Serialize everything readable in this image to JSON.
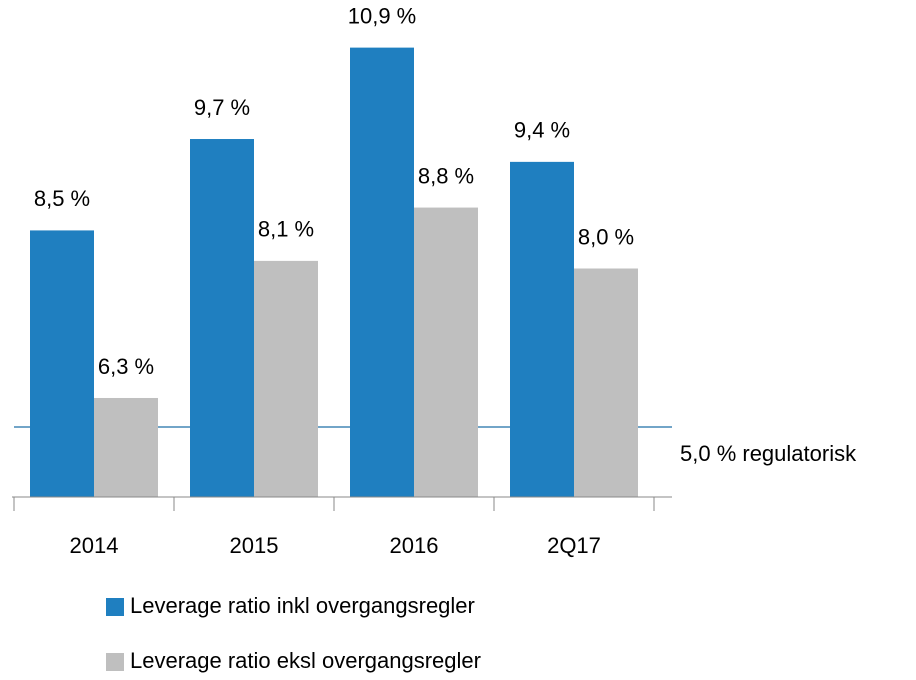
{
  "chart_data": {
    "type": "bar",
    "categories": [
      "2014",
      "2015",
      "2016",
      "2Q17"
    ],
    "series": [
      {
        "name": "Leverage ratio inkl overgangsregler",
        "color": "#1f7fc0",
        "values": [
          8.5,
          9.7,
          10.9,
          9.4
        ],
        "value_labels": [
          "8,5 %",
          "9,7 %",
          "10,9 %",
          "9,4 %"
        ]
      },
      {
        "name": "Leverage ratio eksl overgangsregler",
        "color": "#bfbfbf",
        "values": [
          6.3,
          8.1,
          8.8,
          8.0
        ],
        "value_labels": [
          "6,3 %",
          "8,1 %",
          "8,8 %",
          "8,0 %"
        ]
      }
    ],
    "annotation": "5,0 % regulatorisk",
    "ylim": [
      5,
      11
    ]
  }
}
